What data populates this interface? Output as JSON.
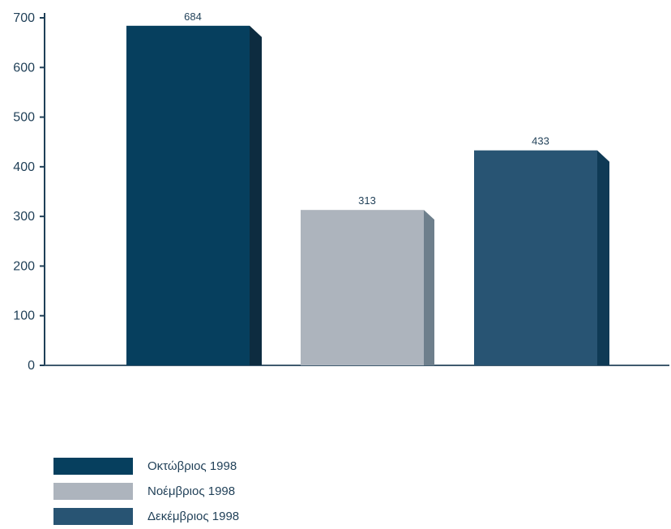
{
  "chart_data": {
    "type": "bar",
    "categories": [
      "Οκτώβριος 1998",
      "Νοέμβριος 1998",
      "Δεκέμβριος 1998"
    ],
    "values": [
      684,
      313,
      433
    ],
    "data_labels": [
      "684",
      "313",
      "433"
    ],
    "colors": [
      "#063f5e",
      "#adb4bd",
      "#285473"
    ],
    "side_colors": [
      "#0d2c40",
      "#6e7f8c",
      "#0f3a55"
    ],
    "title": "",
    "xlabel": "",
    "ylabel": "",
    "ylim": [
      0,
      700
    ],
    "yticks": [
      0,
      100,
      200,
      300,
      400,
      500,
      600,
      700
    ],
    "grid": false,
    "legend_position": "bottom-left"
  },
  "legend": {
    "items": [
      {
        "label": "Οκτώβριος 1998",
        "color": "#063f5e"
      },
      {
        "label": "Νοέμβριος 1998",
        "color": "#adb4bd"
      },
      {
        "label": "Δεκέμβριος 1998",
        "color": "#285473"
      }
    ]
  }
}
